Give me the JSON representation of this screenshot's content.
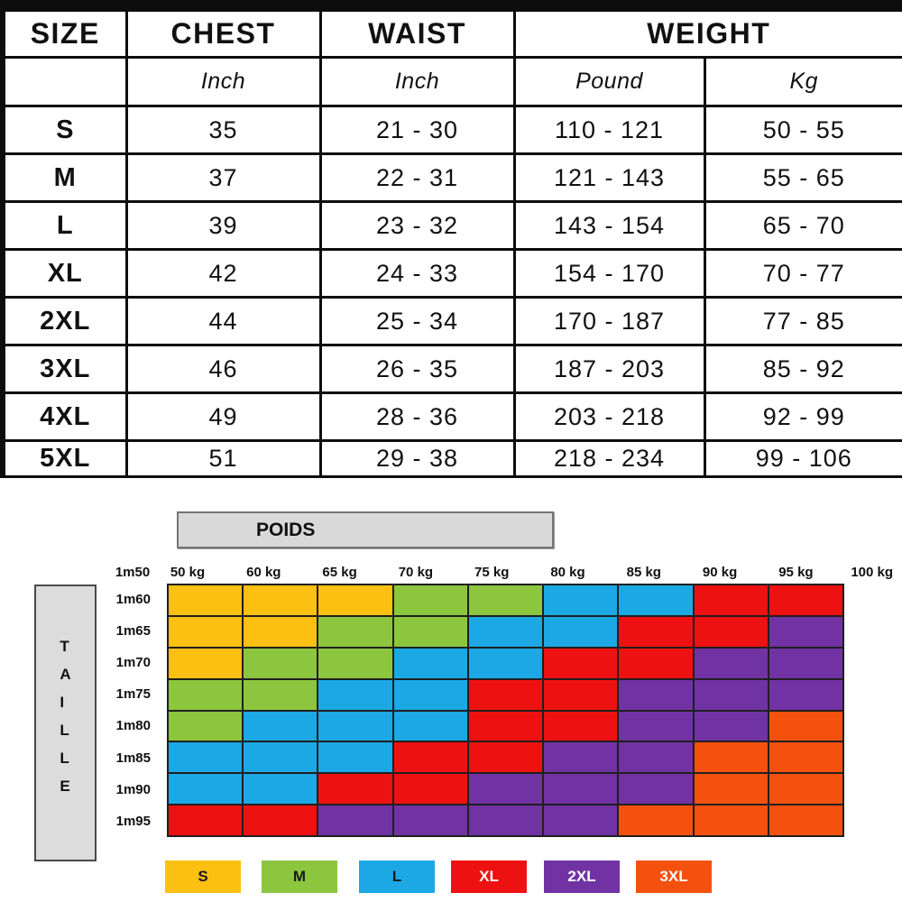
{
  "size_table": {
    "headers": {
      "size": "SIZE",
      "chest": "CHEST",
      "waist": "WAIST",
      "weight": "WEIGHT"
    },
    "units": {
      "size": "",
      "chest": "Inch",
      "waist": "Inch",
      "pound": "Pound",
      "kg": "Kg"
    },
    "rows": [
      [
        "S",
        "35",
        "21 - 30",
        "110 - 121",
        "50 - 55"
      ],
      [
        "M",
        "37",
        "22 - 31",
        "121 - 143",
        "55 - 65"
      ],
      [
        "L",
        "39",
        "23 - 32",
        "143 - 154",
        "65 - 70"
      ],
      [
        "XL",
        "42",
        "24 - 33",
        "154 - 170",
        "70 - 77"
      ],
      [
        "2XL",
        "44",
        "25 - 34",
        "170 - 187",
        "77 - 85"
      ],
      [
        "3XL",
        "46",
        "26 - 35",
        "187 - 203",
        "85 - 92"
      ],
      [
        "4XL",
        "49",
        "28 - 36",
        "203 - 218",
        "92 - 99"
      ],
      [
        "5XL",
        "51",
        "29 - 38",
        "218 - 234",
        "99 - 106"
      ]
    ]
  },
  "chart_data": {
    "type": "heatmap",
    "title": "POIDS",
    "ylabel": "TAILLE",
    "top_left_height_label": "1m50",
    "x_tick_labels": [
      "50 kg",
      "60 kg",
      "65 kg",
      "70 kg",
      "75 kg",
      "80 kg",
      "85 kg",
      "90 kg",
      "95 kg",
      "100 kg"
    ],
    "y_tick_labels": [
      "1m60",
      "1m65",
      "1m70",
      "1m75",
      "1m80",
      "1m85",
      "1m90",
      "1m95"
    ],
    "cells": [
      [
        "S",
        "S",
        "S",
        "M",
        "M",
        "L",
        "L",
        "XL",
        "XL"
      ],
      [
        "S",
        "S",
        "M",
        "M",
        "L",
        "L",
        "XL",
        "XL",
        "2XL"
      ],
      [
        "S",
        "M",
        "M",
        "L",
        "L",
        "XL",
        "XL",
        "2XL",
        "2XL"
      ],
      [
        "M",
        "M",
        "L",
        "L",
        "XL",
        "XL",
        "2XL",
        "2XL",
        "2XL"
      ],
      [
        "M",
        "L",
        "L",
        "L",
        "XL",
        "XL",
        "2XL",
        "2XL",
        "3XL"
      ],
      [
        "L",
        "L",
        "L",
        "XL",
        "XL",
        "2XL",
        "2XL",
        "3XL",
        "3XL"
      ],
      [
        "L",
        "L",
        "XL",
        "XL",
        "2XL",
        "2XL",
        "2XL",
        "3XL",
        "3XL"
      ],
      [
        "XL",
        "XL",
        "2XL",
        "2XL",
        "2XL",
        "2XL",
        "3XL",
        "3XL",
        "3XL"
      ]
    ],
    "size_colors": {
      "S": "#FBC011",
      "M": "#8CC63F",
      "L": "#1CA8E4",
      "XL": "#EE1111",
      "2XL": "#7133A3",
      "3XL": "#F4510F"
    },
    "legend": [
      {
        "label": "S",
        "color": "#FBC011",
        "text_color": "#1a1a1a"
      },
      {
        "label": "M",
        "color": "#8CC63F",
        "text_color": "#1a1a1a"
      },
      {
        "label": "L",
        "color": "#1CA8E4",
        "text_color": "#1a1a1a"
      },
      {
        "label": "XL",
        "color": "#EE1111",
        "text_color": "#ffffff"
      },
      {
        "label": "2XL",
        "color": "#7133A3",
        "text_color": "#ffffff"
      },
      {
        "label": "3XL",
        "color": "#F4510F",
        "text_color": "#ffffff"
      }
    ],
    "legend_position": "bottom",
    "grid": "on"
  }
}
